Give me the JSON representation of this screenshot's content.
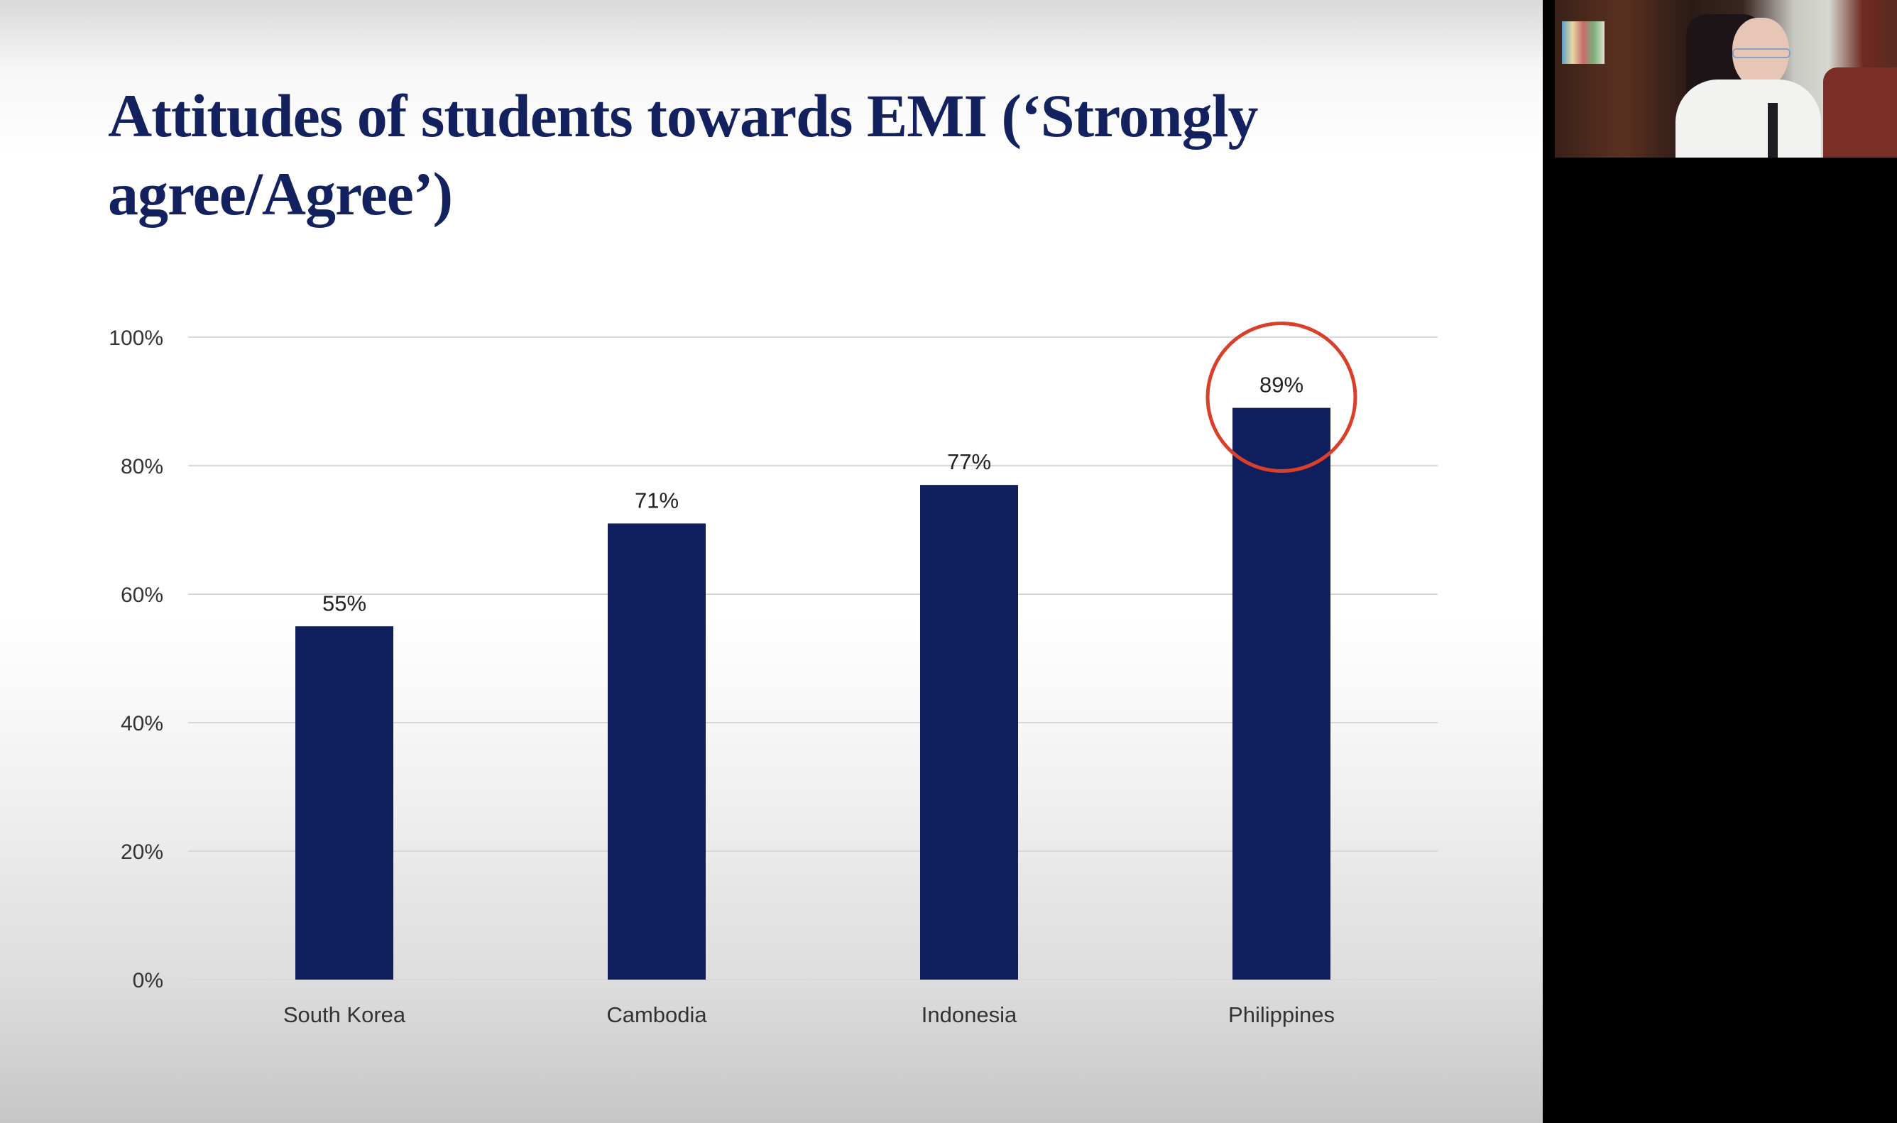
{
  "slide": {
    "title": "Attitudes of students towards EMI (‘Strongly agree/Agree’)"
  },
  "chart_data": {
    "type": "bar",
    "title": "",
    "xlabel": "",
    "ylabel": "",
    "categories": [
      "South Korea",
      "Cambodia",
      "Indonesia",
      "Philippines"
    ],
    "values": [
      55,
      71,
      77,
      89
    ],
    "data_labels": [
      "55%",
      "71%",
      "77%",
      "89%"
    ],
    "ylim": [
      0,
      100
    ],
    "yticks": [
      0,
      20,
      40,
      60,
      80,
      100
    ],
    "ytick_labels": [
      "0%",
      "20%",
      "40%",
      "60%",
      "80%",
      "100%"
    ],
    "grid": true,
    "legend": "none",
    "bar_color": "#0f1f5e",
    "highlight": {
      "category": "Philippines",
      "shape": "circle",
      "color": "#d9402b"
    }
  },
  "webcam": {
    "icon": "presenter-video"
  }
}
